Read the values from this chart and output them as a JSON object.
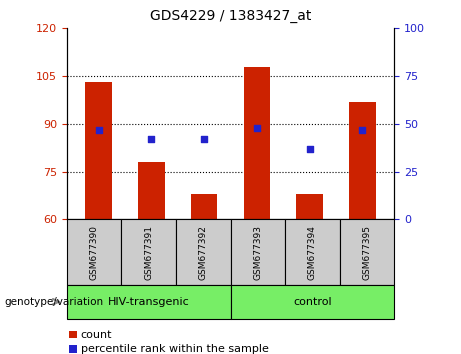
{
  "title": "GDS4229 / 1383427_at",
  "samples": [
    "GSM677390",
    "GSM677391",
    "GSM677392",
    "GSM677393",
    "GSM677394",
    "GSM677395"
  ],
  "bar_values": [
    103,
    78,
    68,
    108,
    68,
    97
  ],
  "dot_values": [
    47,
    42,
    42,
    48,
    37,
    47
  ],
  "bar_bottom": 60,
  "left_ylim": [
    60,
    120
  ],
  "right_ylim": [
    0,
    100
  ],
  "left_yticks": [
    60,
    75,
    90,
    105,
    120
  ],
  "right_yticks": [
    0,
    25,
    50,
    75,
    100
  ],
  "bar_color": "#cc2200",
  "dot_color": "#2222cc",
  "group_bg": "#77ee66",
  "sample_bg": "#cccccc",
  "legend_count": "count",
  "legend_pct": "percentile rank within the sample",
  "genotype_label": "genotype/variation",
  "group1_label": "HIV-transgenic",
  "group2_label": "control"
}
